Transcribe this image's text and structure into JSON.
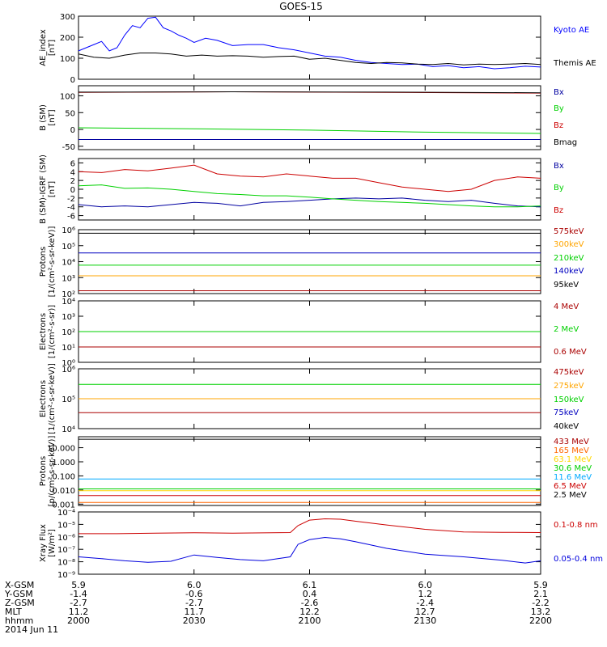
{
  "title": "GOES-15",
  "x_ticks": [
    "2000",
    "2030",
    "2100",
    "2130",
    "2200"
  ],
  "ephemeris": {
    "labels": [
      "X-GSM",
      "Y-GSM",
      "Z-GSM",
      "MLT",
      "hhmm",
      "2014 Jun 11"
    ],
    "rows": [
      [
        "5.9",
        "6.0",
        "6.1",
        "6.0",
        "5.9"
      ],
      [
        "-1.4",
        "-0.6",
        "0.4",
        "1.2",
        "2.1"
      ],
      [
        "-2.7",
        "-2.7",
        "-2.6",
        "-2.4",
        "-2.2"
      ],
      [
        "11.2",
        "11.7",
        "12.2",
        "12.7",
        "13.2"
      ],
      [
        "2000",
        "2030",
        "2100",
        "2130",
        "2200"
      ]
    ]
  },
  "chart_data": [
    {
      "type": "line",
      "ylabel": "AE_index\n[nT]",
      "scale": "linear",
      "ylim": [
        0,
        300
      ],
      "y_ticks": [
        {
          "v": 0,
          "label": "0"
        },
        {
          "v": 100,
          "label": "100"
        },
        {
          "v": 200,
          "label": "200"
        },
        {
          "v": 300,
          "label": "300"
        }
      ],
      "series": [
        {
          "name": "Kyoto AE",
          "color": "#0000ff",
          "x": [
            0,
            2,
            4,
            6,
            8,
            10,
            12,
            14,
            16,
            18,
            20,
            22,
            24,
            26,
            28,
            30,
            33,
            36,
            40,
            44,
            48,
            52,
            56,
            60,
            64,
            68,
            72,
            76,
            80,
            84,
            88,
            92,
            96,
            100,
            104,
            108,
            112,
            116,
            120
          ],
          "values": [
            135,
            150,
            165,
            180,
            135,
            150,
            210,
            255,
            245,
            290,
            295,
            245,
            230,
            210,
            195,
            175,
            195,
            185,
            160,
            165,
            165,
            150,
            140,
            125,
            110,
            105,
            90,
            80,
            75,
            70,
            72,
            60,
            65,
            55,
            60,
            50,
            55,
            62,
            58
          ]
        },
        {
          "name": "Themis AE",
          "color": "#000000",
          "x": [
            0,
            4,
            8,
            12,
            16,
            20,
            24,
            28,
            32,
            36,
            40,
            44,
            48,
            52,
            56,
            60,
            64,
            68,
            72,
            76,
            80,
            84,
            88,
            92,
            96,
            100,
            104,
            108,
            112,
            116,
            120
          ],
          "values": [
            120,
            105,
            100,
            115,
            125,
            125,
            120,
            110,
            115,
            110,
            112,
            110,
            105,
            108,
            110,
            95,
            100,
            90,
            80,
            75,
            80,
            78,
            72,
            70,
            75,
            68,
            72,
            70,
            72,
            75,
            70
          ]
        }
      ]
    },
    {
      "type": "line",
      "ylabel": "B (SM)\n[nT]",
      "scale": "linear",
      "ylim": [
        -60,
        130
      ],
      "y_ticks": [
        {
          "v": -50,
          "label": "-50"
        },
        {
          "v": 0,
          "label": "0"
        },
        {
          "v": 50,
          "label": "50"
        },
        {
          "v": 100,
          "label": "100"
        }
      ],
      "series": [
        {
          "name": "Bx",
          "color": "#0000a0",
          "x": [
            0,
            120
          ],
          "values": [
            -30,
            -30
          ]
        },
        {
          "name": "By",
          "color": "#00d000",
          "x": [
            0,
            30,
            60,
            90,
            120
          ],
          "values": [
            5,
            2,
            -2,
            -8,
            -12
          ]
        },
        {
          "name": "Bz",
          "color": "#cc0000",
          "x": [
            0,
            40,
            80,
            120
          ],
          "values": [
            110,
            112,
            110,
            108
          ]
        },
        {
          "name": "Bmag",
          "color": "#000000",
          "x": [
            0,
            40,
            80,
            120
          ],
          "values": [
            111,
            112,
            111,
            109
          ]
        }
      ]
    },
    {
      "type": "line",
      "ylabel": "B (SM)-IGRF (SM)\n[nT]",
      "scale": "linear",
      "ylim": [
        -7,
        7
      ],
      "y_ticks": [
        {
          "v": -6,
          "label": "-6"
        },
        {
          "v": -4,
          "label": "-4"
        },
        {
          "v": -2,
          "label": "-2"
        },
        {
          "v": 0,
          "label": "0"
        },
        {
          "v": 2,
          "label": "2"
        },
        {
          "v": 4,
          "label": "4"
        },
        {
          "v": 6,
          "label": "6"
        }
      ],
      "series": [
        {
          "name": "Bx",
          "color": "#0000a0",
          "x": [
            0,
            6,
            12,
            18,
            24,
            30,
            36,
            42,
            48,
            54,
            60,
            66,
            72,
            78,
            84,
            90,
            96,
            102,
            108,
            114,
            120
          ],
          "values": [
            -3.5,
            -4,
            -3.8,
            -4,
            -3.5,
            -3,
            -3.2,
            -3.8,
            -3,
            -2.8,
            -2.5,
            -2.2,
            -2,
            -2.2,
            -2,
            -2.5,
            -2.8,
            -2.5,
            -3.2,
            -3.8,
            -4
          ]
        },
        {
          "name": "By",
          "color": "#00d000",
          "x": [
            0,
            6,
            12,
            18,
            24,
            30,
            36,
            42,
            48,
            54,
            60,
            66,
            72,
            78,
            84,
            90,
            96,
            102,
            108,
            114,
            120
          ],
          "values": [
            0.8,
            1,
            0.2,
            0.3,
            0,
            -0.5,
            -1,
            -1.2,
            -1.5,
            -1.5,
            -1.8,
            -2.2,
            -2.5,
            -2.8,
            -3,
            -3.2,
            -3.5,
            -3.8,
            -4,
            -4,
            -3.8
          ]
        },
        {
          "name": "Bz",
          "color": "#cc0000",
          "x": [
            0,
            6,
            12,
            18,
            24,
            30,
            36,
            42,
            48,
            54,
            60,
            66,
            72,
            78,
            84,
            90,
            96,
            102,
            108,
            114,
            120
          ],
          "values": [
            4,
            3.8,
            4.5,
            4.2,
            4.8,
            5.5,
            3.5,
            3,
            2.8,
            3.5,
            3,
            2.5,
            2.5,
            1.5,
            0.5,
            0,
            -0.5,
            0,
            2,
            2.8,
            2.5
          ]
        }
      ]
    },
    {
      "type": "line",
      "ylabel": "Protons\n[1/(cm²-s-sr-keV)]",
      "scale": "log",
      "ylim": [
        100,
        1000000
      ],
      "y_ticks": [
        {
          "v": 100,
          "label": "10²"
        },
        {
          "v": 1000,
          "label": "10³"
        },
        {
          "v": 10000,
          "label": "10⁴"
        },
        {
          "v": 100000,
          "label": "10⁵"
        },
        {
          "v": 1000000,
          "label": "10⁶"
        }
      ],
      "series": [
        {
          "name": "575keV",
          "color": "#aa0000",
          "x": [
            0,
            120
          ],
          "values": [
            150,
            150
          ]
        },
        {
          "name": "300keV",
          "color": "#ffa500",
          "x": [
            0,
            120
          ],
          "values": [
            1300,
            1300
          ]
        },
        {
          "name": "210keV",
          "color": "#00d000",
          "x": [
            0,
            120
          ],
          "values": [
            6000,
            6000
          ]
        },
        {
          "name": "140keV",
          "color": "#0000c0",
          "x": [
            0,
            120
          ],
          "values": [
            35000,
            35000
          ]
        },
        {
          "name": "95keV",
          "color": "#000000",
          "x": [
            0,
            120
          ],
          "values": [
            600000,
            600000
          ]
        }
      ]
    },
    {
      "type": "line",
      "ylabel": "Electrons\n[1/(cm²-s-sr)]",
      "scale": "log",
      "ylim": [
        1,
        10000
      ],
      "y_ticks": [
        {
          "v": 1,
          "label": "10⁰"
        },
        {
          "v": 10,
          "label": "10¹"
        },
        {
          "v": 100,
          "label": "10²"
        },
        {
          "v": 1000,
          "label": "10³"
        },
        {
          "v": 10000,
          "label": "10⁴"
        }
      ],
      "series": [
        {
          "name": "4 MeV",
          "color": "#aa0000",
          "x": [],
          "values": []
        },
        {
          "name": "2 MeV",
          "color": "#00d000",
          "x": [
            0,
            120
          ],
          "values": [
            100,
            100
          ]
        },
        {
          "name": "0.6 MeV",
          "color": "#aa0000",
          "x": [
            0,
            120
          ],
          "values": [
            10,
            10
          ]
        }
      ]
    },
    {
      "type": "line",
      "ylabel": "Electrons\n[1/(cm²-s-sr-keV)]",
      "scale": "log",
      "ylim": [
        10000,
        1000000
      ],
      "y_ticks": [
        {
          "v": 10000,
          "label": "10⁴"
        },
        {
          "v": 100000,
          "label": "10⁵"
        },
        {
          "v": 1000000,
          "label": "10⁶"
        }
      ],
      "series": [
        {
          "name": "475keV",
          "color": "#aa0000",
          "x": [
            0,
            120
          ],
          "values": [
            34000,
            34000
          ]
        },
        {
          "name": "275keV",
          "color": "#ffa500",
          "x": [
            0,
            120
          ],
          "values": [
            100000,
            100000
          ]
        },
        {
          "name": "150keV",
          "color": "#00d000",
          "x": [
            0,
            120
          ],
          "values": [
            300000,
            300000
          ]
        },
        {
          "name": "75keV",
          "color": "#0000c0",
          "x": [],
          "values": []
        },
        {
          "name": "40keV",
          "color": "#000000",
          "x": [],
          "values": []
        }
      ]
    },
    {
      "type": "line",
      "ylabel": "Protons\n[p/(cm²-s-sr-keV)]",
      "scale": "log",
      "ylim": [
        0.0008,
        60
      ],
      "y_ticks": [
        {
          "v": 0.001,
          "label": "0.001"
        },
        {
          "v": 0.01,
          "label": "0.010"
        },
        {
          "v": 0.1,
          "label": "0.100"
        },
        {
          "v": 1,
          "label": "1.000"
        },
        {
          "v": 10,
          "label": "10.000"
        }
      ],
      "series": [
        {
          "name": "433 MeV",
          "color": "#aa0000",
          "x": [],
          "values": []
        },
        {
          "name": "165 MeV",
          "color": "#ff6600",
          "x": [
            0,
            120
          ],
          "values": [
            0.0013,
            0.0013
          ]
        },
        {
          "name": "63.1 MeV",
          "color": "#ffd700",
          "x": [
            0,
            120
          ],
          "values": [
            0.009,
            0.009
          ]
        },
        {
          "name": "30.6 MeV",
          "color": "#00d000",
          "x": [
            0,
            120
          ],
          "values": [
            0.012,
            0.012
          ]
        },
        {
          "name": "11.6 MeV",
          "color": "#00aaff",
          "x": [
            0,
            120
          ],
          "values": [
            0.06,
            0.06
          ]
        },
        {
          "name": "6.5 MeV",
          "color": "#cc0000",
          "x": [
            0,
            120
          ],
          "values": [
            0.004,
            0.004
          ]
        },
        {
          "name": "2.5 MeV",
          "color": "#000000",
          "x": [
            0,
            120
          ],
          "values": [
            40,
            40
          ]
        }
      ]
    },
    {
      "type": "line",
      "ylabel": "Xray Flux\n[W/m²]",
      "scale": "log",
      "ylim": [
        1e-09,
        0.0001
      ],
      "y_ticks": [
        {
          "v": 1e-09,
          "label": "10⁻⁹"
        },
        {
          "v": 1e-08,
          "label": "10⁻⁸"
        },
        {
          "v": 1e-07,
          "label": "10⁻⁷"
        },
        {
          "v": 1e-06,
          "label": "10⁻⁶"
        },
        {
          "v": 1e-05,
          "label": "10⁻⁵"
        },
        {
          "v": 0.0001,
          "label": "10⁻⁴"
        }
      ],
      "series": [
        {
          "name": "0.1-0.8 nm",
          "color": "#cc0000",
          "x": [
            0,
            10,
            20,
            30,
            40,
            50,
            55,
            57,
            60,
            64,
            68,
            72,
            80,
            90,
            100,
            110,
            120
          ],
          "values": [
            1.8e-06,
            1.8e-06,
            2e-06,
            2.1e-06,
            2e-06,
            2.1e-06,
            2.2e-06,
            8e-06,
            2.2e-05,
            2.8e-05,
            2.6e-05,
            1.8e-05,
            9e-06,
            4e-06,
            2.5e-06,
            2.3e-06,
            2.2e-06
          ]
        },
        {
          "name": "0.05-0.4 nm",
          "color": "#0000dd",
          "x": [
            0,
            6,
            12,
            18,
            24,
            30,
            36,
            42,
            48,
            55,
            57,
            60,
            64,
            68,
            72,
            80,
            90,
            100,
            110,
            116,
            120
          ],
          "values": [
            2.5e-08,
            1.8e-08,
            1.2e-08,
            9e-09,
            1.1e-08,
            3.5e-08,
            2.2e-08,
            1.5e-08,
            1.2e-08,
            2.5e-08,
            2.5e-07,
            6e-07,
            9e-07,
            7e-07,
            4e-07,
            1.2e-07,
            4e-08,
            2.5e-08,
            1.3e-08,
            8e-09,
            1.2e-08
          ]
        }
      ]
    }
  ]
}
